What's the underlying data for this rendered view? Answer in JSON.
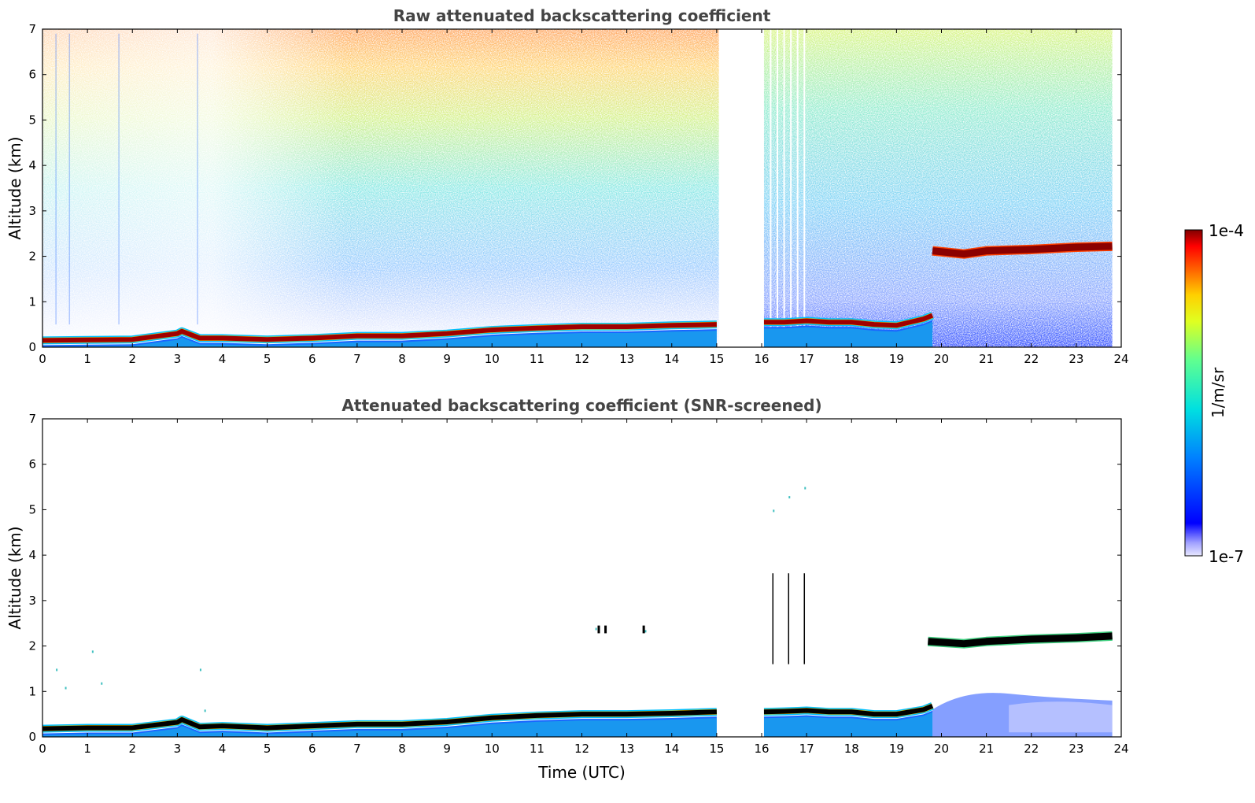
{
  "chart_data": [
    {
      "type": "heatmap",
      "title": "Raw attenuated backscattering coefficient",
      "ylabel": "Altitude (km)",
      "xlabel": "",
      "xlim": [
        0,
        24
      ],
      "ylim": [
        0,
        7
      ],
      "xticks": [
        "0",
        "1",
        "2",
        "3",
        "4",
        "5",
        "6",
        "7",
        "8",
        "9",
        "10",
        "11",
        "12",
        "13",
        "14",
        "15",
        "16",
        "17",
        "18",
        "19",
        "20",
        "21",
        "22",
        "23",
        "24"
      ],
      "yticks": [
        "0",
        "1",
        "2",
        "3",
        "4",
        "5",
        "6",
        "7"
      ],
      "data_gaps": [
        [
          15.05,
          16.05
        ]
      ],
      "layers": [
        {
          "kind": "boundary_layer_top",
          "x": [
            0,
            1,
            2,
            3,
            3.1,
            3.5,
            4,
            5,
            6,
            7,
            8,
            9,
            10,
            11,
            12,
            13,
            14,
            15
          ],
          "y": [
            0.15,
            0.16,
            0.17,
            0.3,
            0.35,
            0.2,
            0.2,
            0.17,
            0.2,
            0.25,
            0.25,
            0.3,
            0.38,
            0.42,
            0.45,
            0.45,
            0.48,
            0.5
          ]
        },
        {
          "kind": "boundary_layer_top",
          "x": [
            16.05,
            16.5,
            17,
            17.5,
            18,
            18.5,
            19,
            19.3,
            19.6,
            19.8
          ],
          "y": [
            0.55,
            0.55,
            0.58,
            0.55,
            0.55,
            0.5,
            0.48,
            0.55,
            0.62,
            0.7
          ]
        },
        {
          "kind": "elevated_layer",
          "x": [
            19.8,
            20.5,
            21,
            22,
            23,
            23.8
          ],
          "y": [
            2.12,
            2.05,
            2.12,
            2.15,
            2.2,
            2.22
          ]
        }
      ]
    },
    {
      "type": "heatmap",
      "title": "Attenuated backscattering coefficient (SNR-screened)",
      "ylabel": "Altitude (km)",
      "xlabel": "Time (UTC)",
      "xlim": [
        0,
        24
      ],
      "ylim": [
        0,
        7
      ],
      "xticks": [
        "0",
        "1",
        "2",
        "3",
        "4",
        "5",
        "6",
        "7",
        "8",
        "9",
        "10",
        "11",
        "12",
        "13",
        "14",
        "15",
        "16",
        "17",
        "18",
        "19",
        "20",
        "21",
        "22",
        "23",
        "24"
      ],
      "yticks": [
        "0",
        "1",
        "2",
        "3",
        "4",
        "5",
        "6",
        "7"
      ],
      "data_gaps": [
        [
          15.05,
          16.05
        ]
      ],
      "layers": [
        {
          "kind": "boundary_layer_top",
          "x": [
            0,
            1,
            2,
            3,
            3.1,
            3.5,
            4,
            5,
            6,
            7,
            8,
            9,
            10,
            11,
            12,
            13,
            14,
            15
          ],
          "y": [
            0.18,
            0.2,
            0.2,
            0.32,
            0.38,
            0.22,
            0.24,
            0.2,
            0.24,
            0.28,
            0.28,
            0.33,
            0.42,
            0.47,
            0.5,
            0.5,
            0.52,
            0.55
          ]
        },
        {
          "kind": "boundary_layer_top",
          "x": [
            16.05,
            16.5,
            17,
            17.5,
            18,
            18.5,
            19,
            19.3,
            19.6,
            19.8
          ],
          "y": [
            0.55,
            0.56,
            0.58,
            0.55,
            0.55,
            0.5,
            0.5,
            0.55,
            0.6,
            0.68
          ]
        },
        {
          "kind": "elevated_layer",
          "x": [
            19.7,
            20.5,
            21,
            22,
            23,
            23.8
          ],
          "y": [
            2.1,
            2.05,
            2.1,
            2.15,
            2.18,
            2.22
          ]
        }
      ]
    }
  ],
  "colorbar": {
    "max_label": "1e-4",
    "min_label": "1e-7",
    "unit": "1/m/sr",
    "scale": "log",
    "range": [
      1e-07,
      0.0001
    ],
    "colormap": "jet"
  },
  "colors": {
    "title_text": "#444444",
    "background": "#ffffff",
    "layer_dark_red": "#8b0000",
    "ground_blue": "#1a66ff",
    "screened_core": "#000000"
  }
}
